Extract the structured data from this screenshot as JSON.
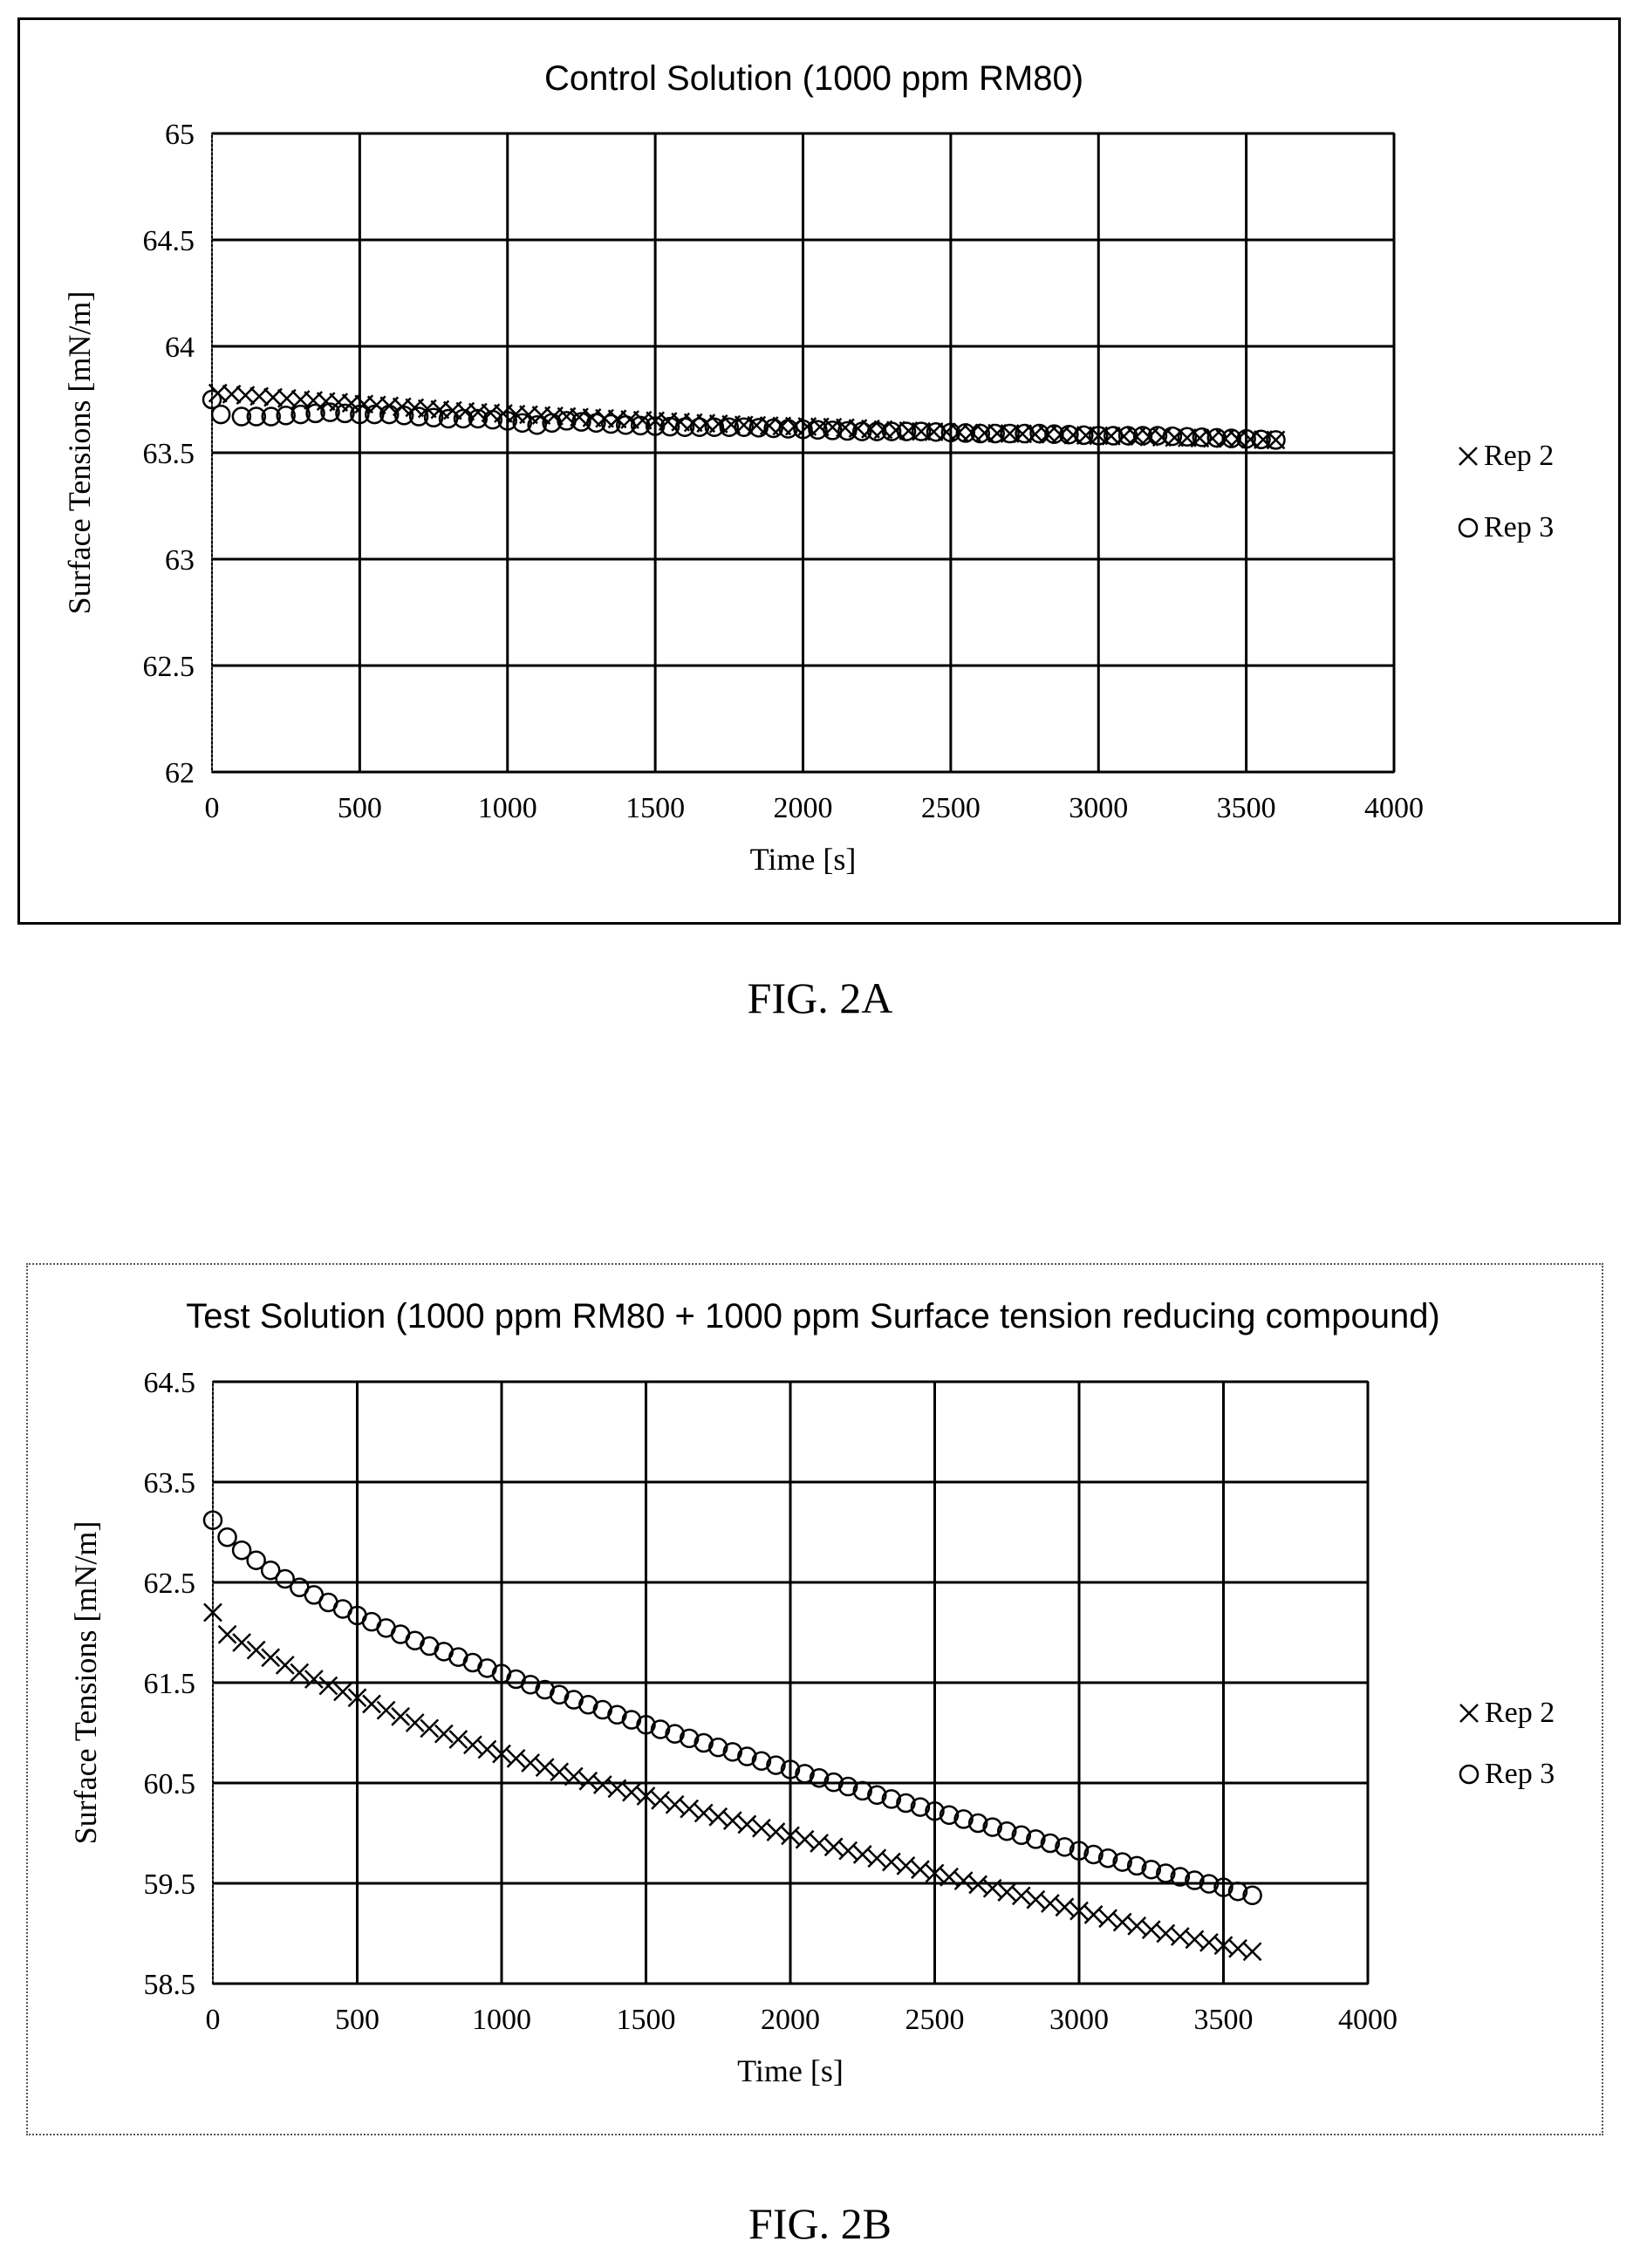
{
  "figures": {
    "a": {
      "caption": "FIG. 2A"
    },
    "b": {
      "caption": "FIG. 2B"
    }
  },
  "chart_data": [
    {
      "type": "scatter",
      "title": "Control Solution (1000 ppm RM80)",
      "xlabel": "Time [s]",
      "ylabel": "Surface Tensions [mN/m]",
      "xlim": [
        0,
        4000
      ],
      "ylim": [
        62,
        65
      ],
      "xticks": [
        0,
        500,
        1000,
        1500,
        2000,
        2500,
        3000,
        3500,
        4000
      ],
      "xtick_labels": [
        "0",
        "500",
        "1000",
        "1500",
        "2000",
        "2500",
        "3000",
        "3500",
        "4000"
      ],
      "yticks": [
        62,
        62.5,
        63,
        63.5,
        64,
        64.5,
        65
      ],
      "ytick_labels": [
        "62",
        "62.5",
        "63",
        "63.5",
        "64",
        "64.5",
        "65"
      ],
      "grid": true,
      "legend_position": "right",
      "series": [
        {
          "name": "Rep 2",
          "marker": "x",
          "color": "#000000",
          "x": [
            20,
            300,
            600,
            900,
            1200,
            1500,
            1800,
            2100,
            2400,
            2700,
            3000,
            3300,
            3600
          ],
          "y": [
            63.78,
            63.75,
            63.72,
            63.69,
            63.67,
            63.65,
            63.63,
            63.62,
            63.6,
            63.59,
            63.58,
            63.57,
            63.56
          ]
        },
        {
          "name": "Rep 3",
          "marker": "o",
          "color": "#000000",
          "x": [
            0,
            30,
            100,
            200,
            300,
            400,
            500,
            600,
            700,
            800,
            900,
            1000,
            1100,
            1200,
            1400,
            1600,
            1800,
            2000,
            2200,
            2400,
            2600,
            2800,
            3000,
            3200,
            3400,
            3600
          ],
          "y": [
            63.75,
            63.68,
            63.67,
            63.67,
            63.68,
            63.69,
            63.68,
            63.68,
            63.67,
            63.66,
            63.66,
            63.65,
            63.63,
            63.65,
            63.63,
            63.62,
            63.62,
            63.61,
            63.6,
            63.6,
            63.59,
            63.59,
            63.58,
            63.58,
            63.57,
            63.56
          ]
        }
      ]
    },
    {
      "type": "scatter",
      "title": "Test Solution (1000 ppm RM80 + 1000 ppm Surface tension reducing compound)",
      "xlabel": "Time [s]",
      "ylabel": "Surface Tensions [mN/m]",
      "xlim": [
        0,
        4000
      ],
      "ylim": [
        58.5,
        64.5
      ],
      "xticks": [
        0,
        500,
        1000,
        1500,
        2000,
        2500,
        3000,
        3500,
        4000
      ],
      "xtick_labels": [
        "0",
        "500",
        "1000",
        "1500",
        "2000",
        "2500",
        "3000",
        "3500",
        "4000"
      ],
      "yticks": [
        58.5,
        59.5,
        60.5,
        61.5,
        62.5,
        63.5,
        64.5
      ],
      "ytick_labels": [
        "58.5",
        "59.5",
        "60.5",
        "61.5",
        "62.5",
        "63.5",
        "64.5"
      ],
      "grid": true,
      "legend_position": "right",
      "series": [
        {
          "name": "Rep 2",
          "marker": "x",
          "color": "#000000",
          "x": [
            0,
            50,
            100,
            200,
            300,
            400,
            500,
            700,
            900,
            1100,
            1300,
            1500,
            1700,
            1900,
            2100,
            2300,
            2500,
            2700,
            2900,
            3100,
            3300,
            3500,
            3600
          ],
          "y": [
            62.2,
            61.98,
            61.9,
            61.75,
            61.6,
            61.47,
            61.35,
            61.1,
            60.88,
            60.7,
            60.52,
            60.37,
            60.2,
            60.05,
            59.9,
            59.75,
            59.6,
            59.45,
            59.3,
            59.15,
            59.0,
            58.88,
            58.82
          ]
        },
        {
          "name": "Rep 3",
          "marker": "o",
          "color": "#000000",
          "x": [
            0,
            50,
            100,
            200,
            300,
            400,
            500,
            700,
            900,
            1100,
            1300,
            1500,
            1700,
            1900,
            2100,
            2300,
            2500,
            2700,
            2900,
            3100,
            3300,
            3500,
            3600
          ],
          "y": [
            63.12,
            62.95,
            62.82,
            62.62,
            62.45,
            62.3,
            62.17,
            61.92,
            61.7,
            61.48,
            61.28,
            61.08,
            60.9,
            60.72,
            60.55,
            60.38,
            60.22,
            60.06,
            59.9,
            59.75,
            59.6,
            59.46,
            59.38
          ]
        }
      ]
    }
  ]
}
